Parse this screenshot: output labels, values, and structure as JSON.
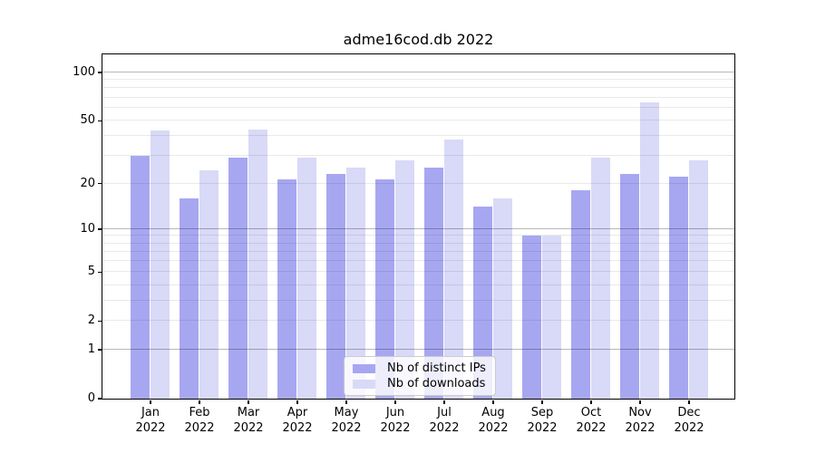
{
  "title": "adme16cod.db 2022",
  "chart_data": {
    "type": "bar",
    "title": "adme16cod.db 2022",
    "categories": [
      "Jan",
      "Feb",
      "Mar",
      "Apr",
      "May",
      "Jun",
      "Jul",
      "Aug",
      "Sep",
      "Oct",
      "Nov",
      "Dec"
    ],
    "year_label": "2022",
    "series": [
      {
        "name": "Nb of distinct IPs",
        "color": "#a7a7f1",
        "values": [
          30,
          16,
          29,
          21,
          23,
          21,
          25,
          14,
          9,
          18,
          23,
          22
        ]
      },
      {
        "name": "Nb of downloads",
        "color": "#d9d9f8",
        "values": [
          43,
          24,
          44,
          29,
          25,
          28,
          38,
          16,
          9,
          29,
          65,
          28
        ]
      }
    ],
    "xlabel": "",
    "ylabel": "",
    "yscale": "log1p",
    "ylim": [
      0,
      131
    ],
    "y_tick_values": [
      0,
      1,
      2,
      5,
      10,
      20,
      50,
      100
    ],
    "y_tick_labels": [
      "0",
      "1",
      "2",
      "5",
      "10",
      "20",
      "50",
      "100"
    ],
    "y_major_gridlines": [
      1,
      10,
      100
    ],
    "y_minor_gridlines": [
      2,
      3,
      4,
      5,
      6,
      7,
      8,
      9,
      20,
      30,
      40,
      50,
      60,
      70,
      80,
      90
    ],
    "grid": "on",
    "legend_position": "lower center"
  },
  "colors": {
    "background": "#ffffff",
    "bar_distinct_ips": "#a7a7f1",
    "bar_downloads": "#d9d9f8",
    "axis": "#000000",
    "major_grid": "#b7b7b7",
    "minor_grid": "#e9e9e9",
    "legend_border": "#cccccc"
  }
}
